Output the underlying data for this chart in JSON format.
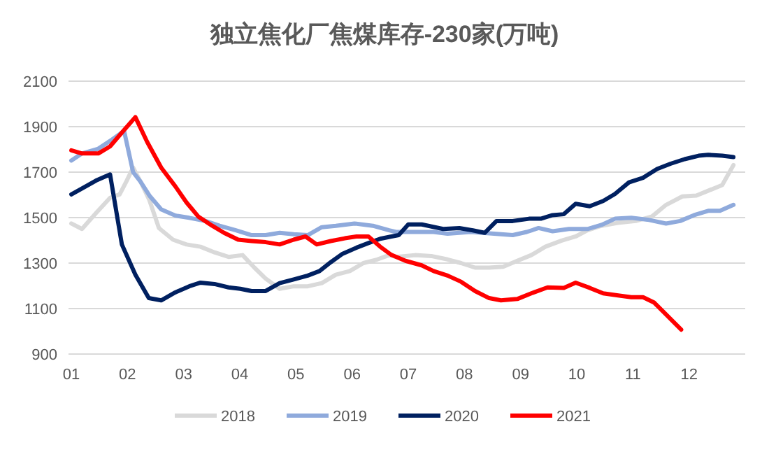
{
  "chart_data": {
    "type": "line",
    "title": "独立焦化厂焦煤库存-230家(万吨)",
    "xlim": [
      0.95,
      13.0
    ],
    "xticks": [
      {
        "value": 1,
        "label": "01"
      },
      {
        "value": 2,
        "label": "02"
      },
      {
        "value": 3,
        "label": "03"
      },
      {
        "value": 4,
        "label": "04"
      },
      {
        "value": 5,
        "label": "05"
      },
      {
        "value": 6,
        "label": "06"
      },
      {
        "value": 7,
        "label": "07"
      },
      {
        "value": 8,
        "label": "08"
      },
      {
        "value": 9,
        "label": "09"
      },
      {
        "value": 10,
        "label": "10"
      },
      {
        "value": 11,
        "label": "11"
      },
      {
        "value": 12,
        "label": "12"
      }
    ],
    "ylim": [
      900,
      2100
    ],
    "yticks": [
      900,
      1100,
      1300,
      1500,
      1700,
      1900,
      2100
    ],
    "grid": "y",
    "legend": "bottom",
    "marker": "none",
    "line_style": "solid",
    "series": [
      {
        "name": "2018",
        "color": "#d9d9d9",
        "x": [
          1.0,
          1.19,
          1.44,
          1.69,
          1.86,
          1.98,
          2.1,
          2.23,
          2.39,
          2.56,
          2.81,
          3.05,
          3.3,
          3.55,
          3.8,
          4.05,
          4.26,
          4.46,
          4.71,
          4.96,
          5.21,
          5.46,
          5.71,
          5.96,
          6.2,
          6.45,
          6.66,
          6.78,
          7.12,
          7.41,
          7.7,
          7.94,
          8.19,
          8.44,
          8.69,
          8.94,
          9.19,
          9.44,
          9.73,
          9.98,
          10.19,
          10.44,
          10.76,
          11.05,
          11.34,
          11.59,
          11.88,
          12.13,
          12.34,
          12.59,
          12.79
        ],
        "values": [
          1474,
          1450,
          1520,
          1587,
          1602,
          1659,
          1720,
          1659,
          1577,
          1454,
          1403,
          1382,
          1372,
          1347,
          1327,
          1335,
          1280,
          1232,
          1187,
          1198,
          1198,
          1212,
          1249,
          1265,
          1300,
          1316,
          1335,
          1327,
          1335,
          1331,
          1316,
          1300,
          1280,
          1280,
          1284,
          1310,
          1335,
          1372,
          1399,
          1417,
          1444,
          1464,
          1478,
          1485,
          1505,
          1556,
          1593,
          1597,
          1618,
          1643,
          1731
        ]
      },
      {
        "name": "2019",
        "color": "#8faadc",
        "x": [
          1.0,
          1.19,
          1.48,
          1.73,
          1.94,
          2.1,
          2.23,
          2.39,
          2.6,
          2.85,
          3.1,
          3.39,
          3.64,
          3.93,
          4.21,
          4.46,
          4.71,
          4.96,
          5.21,
          5.46,
          5.71,
          6.04,
          6.37,
          6.66,
          6.78,
          7.12,
          7.45,
          7.7,
          8.11,
          8.53,
          8.86,
          9.11,
          9.32,
          9.57,
          9.86,
          10.19,
          10.44,
          10.68,
          10.97,
          11.26,
          11.59,
          11.84,
          12.09,
          12.34,
          12.55,
          12.79
        ],
        "values": [
          1751,
          1782,
          1803,
          1844,
          1881,
          1700,
          1659,
          1597,
          1536,
          1509,
          1499,
          1485,
          1464,
          1444,
          1423,
          1423,
          1433,
          1427,
          1423,
          1458,
          1464,
          1474,
          1464,
          1444,
          1437,
          1437,
          1437,
          1429,
          1437,
          1429,
          1423,
          1437,
          1454,
          1440,
          1450,
          1450,
          1468,
          1495,
          1499,
          1491,
          1474,
          1485,
          1511,
          1530,
          1530,
          1556
        ]
      },
      {
        "name": "2020",
        "color": "#002060",
        "x": [
          1.0,
          1.19,
          1.44,
          1.69,
          1.9,
          2.14,
          2.38,
          2.6,
          2.85,
          3.1,
          3.3,
          3.55,
          3.8,
          4.01,
          4.21,
          4.46,
          4.71,
          4.96,
          5.21,
          5.42,
          5.62,
          5.83,
          6.08,
          6.29,
          6.5,
          6.7,
          6.83,
          7.0,
          7.24,
          7.62,
          7.91,
          8.15,
          8.36,
          8.57,
          8.86,
          9.15,
          9.36,
          9.57,
          9.77,
          9.98,
          10.23,
          10.47,
          10.68,
          10.93,
          11.18,
          11.43,
          11.67,
          11.92,
          12.17,
          12.34,
          12.59,
          12.79
        ],
        "values": [
          1602,
          1628,
          1663,
          1690,
          1382,
          1249,
          1146,
          1136,
          1171,
          1198,
          1214,
          1208,
          1193,
          1187,
          1177,
          1177,
          1212,
          1228,
          1245,
          1265,
          1304,
          1341,
          1368,
          1388,
          1407,
          1417,
          1423,
          1470,
          1470,
          1450,
          1454,
          1444,
          1433,
          1485,
          1485,
          1495,
          1495,
          1511,
          1515,
          1561,
          1550,
          1573,
          1604,
          1655,
          1675,
          1714,
          1737,
          1757,
          1772,
          1776,
          1772,
          1766
        ]
      },
      {
        "name": "2021",
        "color": "#ff0000",
        "x": [
          1.0,
          1.19,
          1.48,
          1.69,
          1.9,
          2.14,
          2.35,
          2.6,
          2.85,
          3.05,
          3.26,
          3.51,
          3.72,
          3.97,
          4.21,
          4.46,
          4.71,
          4.96,
          5.17,
          5.37,
          5.62,
          5.87,
          6.08,
          6.29,
          6.5,
          6.7,
          6.95,
          7.24,
          7.45,
          7.7,
          7.94,
          8.19,
          8.44,
          8.65,
          8.94,
          9.19,
          9.48,
          9.77,
          9.98,
          10.23,
          10.47,
          10.76,
          10.97,
          11.18,
          11.38,
          11.63,
          11.86
        ],
        "values": [
          1796,
          1782,
          1782,
          1813,
          1874,
          1942,
          1833,
          1720,
          1638,
          1567,
          1505,
          1464,
          1433,
          1403,
          1397,
          1392,
          1382,
          1403,
          1417,
          1382,
          1397,
          1409,
          1417,
          1417,
          1372,
          1336,
          1310,
          1290,
          1265,
          1245,
          1218,
          1177,
          1146,
          1136,
          1142,
          1167,
          1193,
          1191,
          1214,
          1191,
          1167,
          1157,
          1150,
          1150,
          1126,
          1064,
          1007
        ]
      }
    ]
  }
}
